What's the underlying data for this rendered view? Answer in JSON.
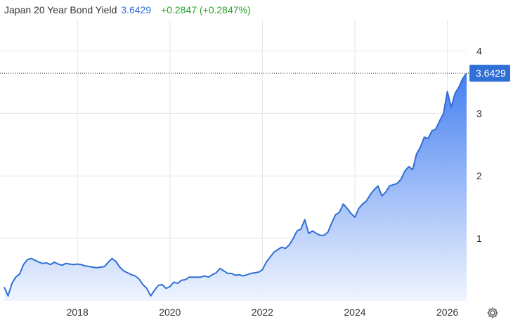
{
  "header": {
    "title": "Japan 20 Year Bond Yield",
    "last_value": "3.6429",
    "change": "+0.2847 (+0.2847%)"
  },
  "settings": {
    "icon": "gear-icon"
  },
  "colors": {
    "line": "#2f6fd6",
    "area_top": "#3a78f0",
    "area_bottom": "#eef3fe",
    "badge": "#2f6fd6",
    "up": "#2aa32a",
    "grid": "#e6e6e6"
  },
  "chart_data": {
    "type": "area",
    "title": "Japan 20 Year Bond Yield",
    "xlabel": "",
    "ylabel": "",
    "x_ticks": [
      "2018",
      "2020",
      "2022",
      "2024",
      "2026"
    ],
    "y_ticks": [
      "1",
      "2",
      "3",
      "4"
    ],
    "xlim": [
      "2016-06",
      "2026-06"
    ],
    "ylim": [
      0,
      4.5
    ],
    "grid": true,
    "last_value_label": "3.6429",
    "series": [
      {
        "x": [
          "2016-06",
          "2016-07",
          "2016-08",
          "2016-09",
          "2016-10",
          "2016-11",
          "2016-12",
          "2017-01",
          "2017-02",
          "2017-03",
          "2017-04",
          "2017-05",
          "2017-06",
          "2017-07",
          "2017-08",
          "2017-09",
          "2017-10",
          "2017-11",
          "2017-12",
          "2018-01",
          "2018-02",
          "2018-03",
          "2018-04",
          "2018-05",
          "2018-06",
          "2018-07",
          "2018-08",
          "2018-09",
          "2018-10",
          "2018-11",
          "2018-12",
          "2019-01",
          "2019-02",
          "2019-03",
          "2019-04",
          "2019-05",
          "2019-06",
          "2019-07",
          "2019-08",
          "2019-09",
          "2019-10",
          "2019-11",
          "2019-12",
          "2020-01",
          "2020-02",
          "2020-03",
          "2020-04",
          "2020-05",
          "2020-06",
          "2020-07",
          "2020-08",
          "2020-09",
          "2020-10",
          "2020-11",
          "2020-12",
          "2021-01",
          "2021-02",
          "2021-03",
          "2021-04",
          "2021-05",
          "2021-06",
          "2021-07",
          "2021-08",
          "2021-09",
          "2021-10",
          "2021-11",
          "2021-12",
          "2022-01",
          "2022-02",
          "2022-03",
          "2022-04",
          "2022-05",
          "2022-06",
          "2022-07",
          "2022-08",
          "2022-09",
          "2022-10",
          "2022-11",
          "2022-12",
          "2023-01",
          "2023-02",
          "2023-03",
          "2023-04",
          "2023-05",
          "2023-06",
          "2023-07",
          "2023-08",
          "2023-09",
          "2023-10",
          "2023-11",
          "2023-12",
          "2024-01",
          "2024-02",
          "2024-03",
          "2024-04",
          "2024-05",
          "2024-06",
          "2024-07",
          "2024-08",
          "2024-09",
          "2024-10",
          "2024-11",
          "2024-12",
          "2025-01",
          "2025-02",
          "2025-03",
          "2025-04",
          "2025-05",
          "2025-06",
          "2025-07",
          "2025-08",
          "2025-09",
          "2025-10",
          "2025-11",
          "2025-12",
          "2026-01",
          "2026-02",
          "2026-03",
          "2026-04",
          "2026-05",
          "2026-06"
        ],
        "y": [
          0.22,
          0.08,
          0.28,
          0.38,
          0.43,
          0.58,
          0.66,
          0.68,
          0.65,
          0.62,
          0.6,
          0.61,
          0.58,
          0.62,
          0.59,
          0.57,
          0.6,
          0.59,
          0.58,
          0.59,
          0.58,
          0.56,
          0.55,
          0.54,
          0.53,
          0.54,
          0.55,
          0.62,
          0.68,
          0.63,
          0.54,
          0.48,
          0.45,
          0.42,
          0.4,
          0.35,
          0.26,
          0.2,
          0.08,
          0.17,
          0.25,
          0.26,
          0.2,
          0.23,
          0.3,
          0.28,
          0.33,
          0.34,
          0.38,
          0.38,
          0.38,
          0.38,
          0.4,
          0.38,
          0.42,
          0.45,
          0.52,
          0.48,
          0.44,
          0.44,
          0.41,
          0.42,
          0.4,
          0.42,
          0.44,
          0.45,
          0.46,
          0.5,
          0.62,
          0.7,
          0.78,
          0.82,
          0.86,
          0.84,
          0.9,
          1.0,
          1.12,
          1.15,
          1.3,
          1.08,
          1.12,
          1.08,
          1.05,
          1.05,
          1.1,
          1.25,
          1.38,
          1.42,
          1.55,
          1.48,
          1.4,
          1.34,
          1.48,
          1.55,
          1.6,
          1.7,
          1.78,
          1.84,
          1.68,
          1.74,
          1.84,
          1.86,
          1.88,
          1.95,
          2.08,
          2.15,
          2.1,
          2.35,
          2.46,
          2.62,
          2.6,
          2.72,
          2.75,
          2.88,
          3.0,
          3.35,
          3.1,
          3.32,
          3.42,
          3.56,
          3.6429
        ]
      }
    ]
  }
}
